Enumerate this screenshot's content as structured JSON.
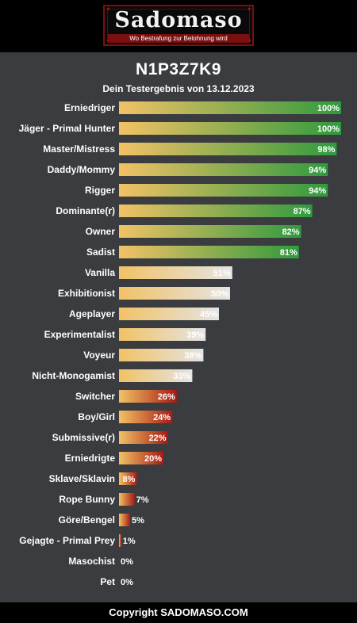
{
  "header": {
    "logo_text": "Sadomaso",
    "logo_tagline": "Wo Bestrafung zur Belohnung wird"
  },
  "title": "N1P3Z7K9",
  "subtitle": "Dein Testergebnis von 13.12.2023",
  "footer": "Copyright SADOMASO.COM",
  "colors": {
    "background": "#3a3c40",
    "bar_start": "#f2c265",
    "high": "#2f9a3e",
    "mid": "#e4e4e4",
    "low": "#a81a12"
  },
  "chart_data": {
    "type": "bar",
    "orientation": "horizontal",
    "value_suffix": "%",
    "xlim": [
      0,
      100
    ],
    "categories": [
      "Erniedriger",
      "Jäger - Primal Hunter",
      "Master/Mistress",
      "Daddy/Mommy",
      "Rigger",
      "Dominante(r)",
      "Owner",
      "Sadist",
      "Vanilla",
      "Exhibitionist",
      "Ageplayer",
      "Experimentalist",
      "Voyeur",
      "Nicht-Monogamist",
      "Switcher",
      "Boy/Girl",
      "Submissive(r)",
      "Erniedrigte",
      "Sklave/Sklavin",
      "Rope Bunny",
      "Göre/Bengel",
      "Gejagte - Primal Prey",
      "Masochist",
      "Pet"
    ],
    "values": [
      100,
      100,
      98,
      94,
      94,
      87,
      82,
      81,
      51,
      50,
      45,
      39,
      38,
      33,
      26,
      24,
      22,
      20,
      8,
      7,
      5,
      1,
      0,
      0
    ],
    "grid": false,
    "legend": false
  }
}
